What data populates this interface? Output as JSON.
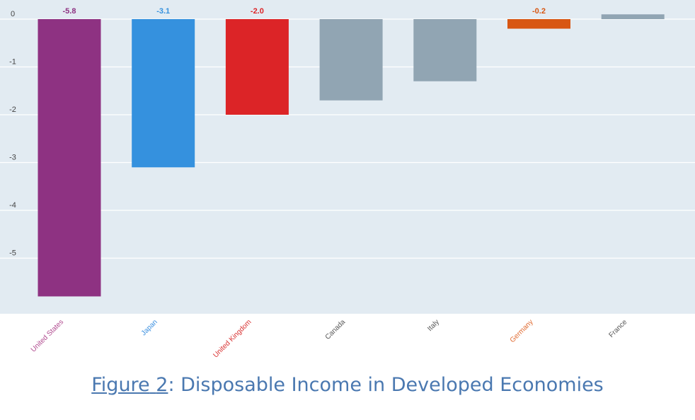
{
  "chart_data": {
    "type": "bar",
    "title": "",
    "xlabel": "",
    "ylabel": "",
    "ylim": [
      -6.2,
      0.25
    ],
    "yticks": [
      0,
      -1,
      -2,
      -3,
      -4,
      -5
    ],
    "grid": true,
    "categories": [
      "United States",
      "Japan",
      "United Kingdom",
      "Canada",
      "Italy",
      "Germany",
      "France"
    ],
    "values": [
      -5.8,
      -3.1,
      -2.0,
      -1.7,
      -1.3,
      -0.2,
      0.1
    ],
    "bar_colors": [
      "#8e3282",
      "#3591de",
      "#dc2427",
      "#91a5b3",
      "#91a5b3",
      "#d85612",
      "#91a5b3"
    ],
    "label_colors": [
      "#b04a8f",
      "#3a8fe0",
      "#d83030",
      "#555555",
      "#555555",
      "#e06a30",
      "#555555"
    ],
    "data_labels": [
      "-5.8",
      "-3.1",
      "-2.0",
      "",
      "",
      "-0.2",
      ""
    ],
    "plot_background": "#e2ebf2"
  },
  "caption": {
    "figure_word": "Figure",
    "figure_number": "2",
    "text": ": Disposable Income in Developed Economies"
  }
}
